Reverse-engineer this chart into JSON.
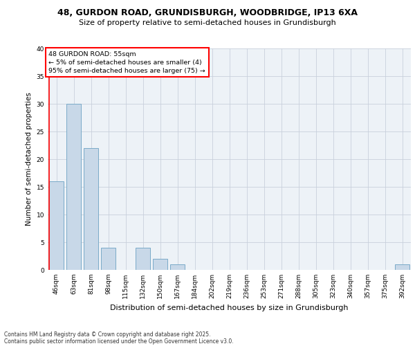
{
  "title1": "48, GURDON ROAD, GRUNDISBURGH, WOODBRIDGE, IP13 6XA",
  "title2": "Size of property relative to semi-detached houses in Grundisburgh",
  "bar_labels": [
    "46sqm",
    "63sqm",
    "81sqm",
    "98sqm",
    "115sqm",
    "132sqm",
    "150sqm",
    "167sqm",
    "184sqm",
    "202sqm",
    "219sqm",
    "236sqm",
    "253sqm",
    "271sqm",
    "288sqm",
    "305sqm",
    "323sqm",
    "340sqm",
    "357sqm",
    "375sqm",
    "392sqm"
  ],
  "bar_values": [
    16,
    30,
    22,
    4,
    0,
    4,
    2,
    1,
    0,
    0,
    0,
    0,
    0,
    0,
    0,
    0,
    0,
    0,
    0,
    0,
    1
  ],
  "bar_color": "#c8d8e8",
  "bar_edgecolor": "#7aaac8",
  "xlabel": "Distribution of semi-detached houses by size in Grundisburgh",
  "ylabel": "Number of semi-detached properties",
  "ylim": [
    0,
    40
  ],
  "yticks": [
    0,
    5,
    10,
    15,
    20,
    25,
    30,
    35,
    40
  ],
  "annotation_title": "48 GURDON ROAD: 55sqm",
  "annotation_line1": "← 5% of semi-detached houses are smaller (4)",
  "annotation_line2": "95% of semi-detached houses are larger (75) →",
  "footer1": "Contains HM Land Registry data © Crown copyright and database right 2025.",
  "footer2": "Contains public sector information licensed under the Open Government Licence v3.0.",
  "bg_color": "#edf2f7",
  "grid_color": "#c8d0dc",
  "title1_fontsize": 9,
  "title2_fontsize": 8,
  "ylabel_fontsize": 7.5,
  "xlabel_fontsize": 8,
  "tick_fontsize": 6.5,
  "ann_fontsize": 6.8,
  "footer_fontsize": 5.5
}
